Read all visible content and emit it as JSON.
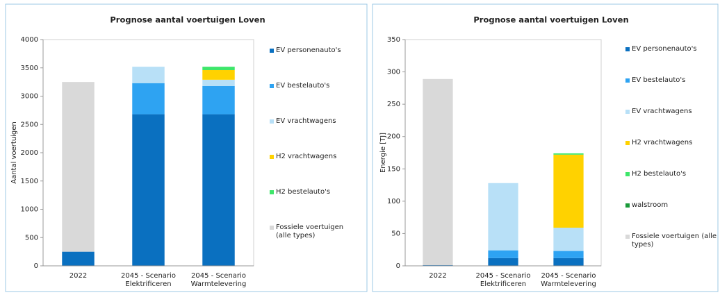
{
  "chart_data": [
    {
      "type": "bar",
      "stacked": true,
      "title": "Prognose aantal voertuigen Loven",
      "y_label": "Aantal voertuigen",
      "categories": [
        "2022",
        "2045 - Scenario Elektrificeren",
        "2045 - Scenario Warmtelevering"
      ],
      "ylim": [
        0,
        4000
      ],
      "yticks": [
        0,
        500,
        1000,
        1500,
        2000,
        2500,
        3000,
        3500,
        4000
      ],
      "series": [
        {
          "name": "EV personenauto's",
          "color": "#0a70c0",
          "values": [
            250,
            2680,
            2680
          ]
        },
        {
          "name": "EV bestelauto's",
          "color": "#2ea3f2",
          "values": [
            0,
            550,
            500
          ]
        },
        {
          "name": "EV vrachtwagens",
          "color": "#b8e0f7",
          "values": [
            0,
            290,
            110
          ]
        },
        {
          "name": "H2 vrachtwagens",
          "color": "#ffd200",
          "values": [
            0,
            0,
            170
          ]
        },
        {
          "name": "H2 bestelauto's",
          "color": "#3ee66a",
          "values": [
            0,
            0,
            60
          ]
        },
        {
          "name": "Fossiele voertuigen (alle types)",
          "color": "#d9d9d9",
          "values": [
            3000,
            0,
            0
          ]
        }
      ]
    },
    {
      "type": "bar",
      "stacked": true,
      "title": "Prognose aantal voertuigen Loven",
      "y_label": "Energie [TJ]",
      "categories": [
        "2022",
        "2045 - Scenario Elektrificeren",
        "2045 - Scenario Warmtelevering"
      ],
      "ylim": [
        0,
        350
      ],
      "yticks": [
        0,
        50,
        100,
        150,
        200,
        250,
        300,
        350
      ],
      "series": [
        {
          "name": "EV personenauto's",
          "color": "#0a70c0",
          "values": [
            1,
            12,
            12
          ]
        },
        {
          "name": "EV bestelauto's",
          "color": "#2ea3f2",
          "values": [
            0,
            12,
            11
          ]
        },
        {
          "name": "EV vrachtwagens",
          "color": "#b8e0f7",
          "values": [
            0,
            104,
            36
          ]
        },
        {
          "name": "H2 vrachtwagens",
          "color": "#ffd200",
          "values": [
            0,
            0,
            113
          ]
        },
        {
          "name": "H2 bestelauto's",
          "color": "#3ee66a",
          "values": [
            0,
            0,
            2
          ]
        },
        {
          "name": "walstroom",
          "color": "#1a9a3a",
          "values": [
            0,
            0,
            0
          ]
        },
        {
          "name": "Fossiele voertuigen (alle types)",
          "color": "#d9d9d9",
          "values": [
            288,
            0,
            0
          ]
        }
      ]
    }
  ]
}
